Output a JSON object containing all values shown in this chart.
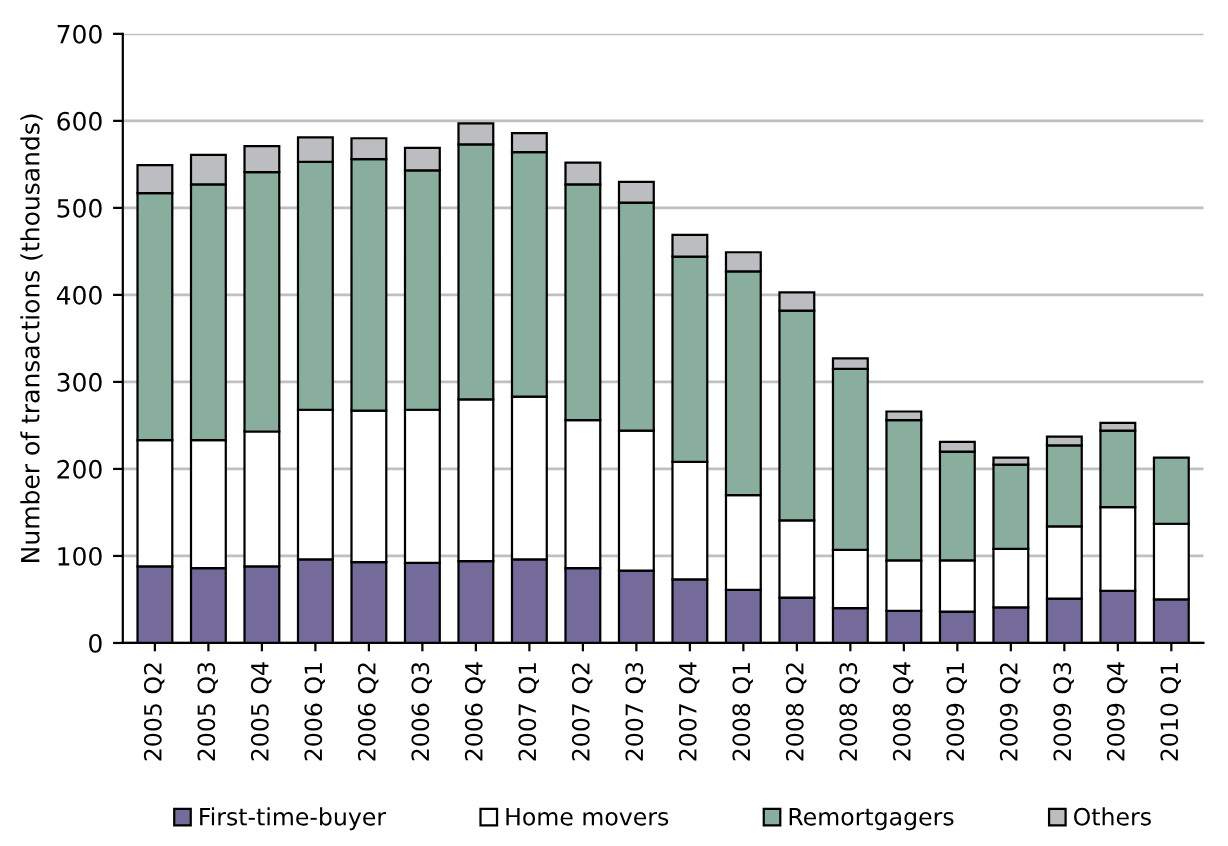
{
  "chart_data": {
    "type": "bar",
    "stacked": true,
    "ylabel": "Number of transactions (thousands)",
    "categories": [
      "2005 Q2",
      "2005 Q3",
      "2005 Q4",
      "2006 Q1",
      "2006 Q2",
      "2006 Q3",
      "2006 Q4",
      "2007 Q1",
      "2007 Q2",
      "2007 Q3",
      "2007 Q4",
      "2008 Q1",
      "2008 Q2",
      "2008 Q3",
      "2008 Q4",
      "2009 Q1",
      "2009 Q2",
      "2009 Q3",
      "2009 Q4",
      "2010 Q1"
    ],
    "series": [
      {
        "name": "First-time-buyer",
        "color": "#756b9a",
        "values": [
          88,
          86,
          88,
          96,
          93,
          92,
          94,
          96,
          86,
          83,
          73,
          61,
          52,
          40,
          37,
          36,
          41,
          51,
          60,
          50
        ]
      },
      {
        "name": "Home movers",
        "color": "#ffffff",
        "values": [
          145,
          147,
          155,
          172,
          174,
          176,
          186,
          187,
          170,
          161,
          135,
          109,
          89,
          67,
          58,
          59,
          67,
          83,
          96,
          87
        ]
      },
      {
        "name": "Remortgagers",
        "color": "#8aae9e",
        "values": [
          284,
          294,
          298,
          285,
          289,
          275,
          293,
          281,
          271,
          262,
          236,
          257,
          241,
          208,
          161,
          125,
          97,
          93,
          88,
          76
        ]
      },
      {
        "name": "Others",
        "color": "#bcbdc1",
        "values": [
          32,
          34,
          30,
          28,
          24,
          26,
          24,
          22,
          25,
          24,
          25,
          22,
          21,
          12,
          10,
          11,
          8,
          10,
          9,
          null
        ]
      }
    ],
    "ylim": [
      0,
      700
    ],
    "yticks": [
      0,
      100,
      200,
      300,
      400,
      500,
      600,
      700
    ],
    "grid": "y",
    "legend": "bottom"
  }
}
